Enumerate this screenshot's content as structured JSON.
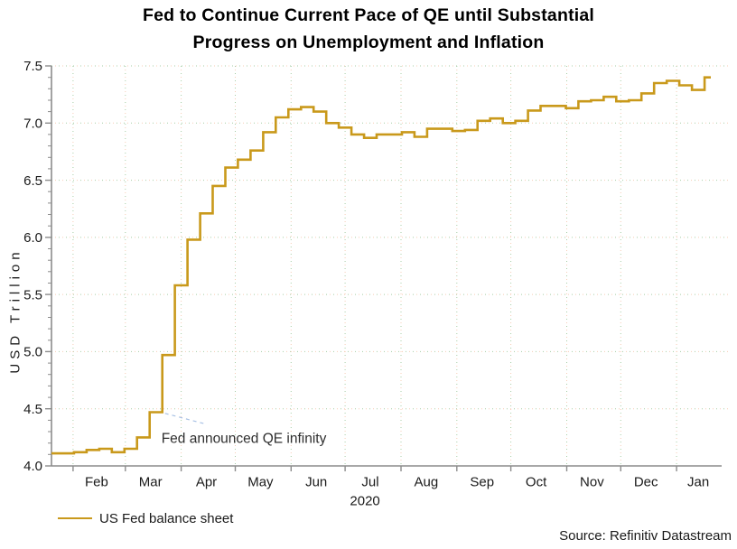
{
  "title": {
    "line1": "Fed to Continue Current Pace of QE until Substantial",
    "line2": "Progress on Unemployment and Inflation"
  },
  "legend": {
    "label": "US Fed balance sheet"
  },
  "source": "Source: Refinitiv Datastream",
  "annotation": {
    "text": "Fed announced QE infinity",
    "leader": {
      "from": {
        "date": "2020-03-23",
        "value": 4.46
      },
      "to": {
        "date": "2020-04-15",
        "value": 4.365
      }
    },
    "text_anchor": {
      "date": "2020-03-21",
      "value": 4.2
    }
  },
  "y_axis": {
    "label": "USD Trillion",
    "tick_values": [
      4.0,
      4.5,
      5.0,
      5.5,
      6.0,
      6.5,
      7.0,
      7.5
    ],
    "tick_labels": [
      "4.0",
      "4.5",
      "5.0",
      "5.5",
      "6.0",
      "6.5",
      "7.0",
      "7.5"
    ],
    "minor_step": 0.1,
    "grid_values": [
      4.5,
      5.0,
      5.5,
      6.0,
      6.5,
      7.0,
      7.5
    ]
  },
  "x_axis": {
    "tick_dates": [
      "2020-02-01",
      "2020-03-01",
      "2020-04-01",
      "2020-05-01",
      "2020-06-01",
      "2020-07-01",
      "2020-08-01",
      "2020-09-01",
      "2020-10-01",
      "2020-11-01",
      "2020-12-01",
      "2021-01-01"
    ],
    "month_labels": [
      {
        "label": "Feb",
        "date": "2020-02-14"
      },
      {
        "label": "Mar",
        "date": "2020-03-15"
      },
      {
        "label": "Apr",
        "date": "2020-04-15"
      },
      {
        "label": "May",
        "date": "2020-05-15"
      },
      {
        "label": "Jun",
        "date": "2020-06-15"
      },
      {
        "label": "Jul",
        "date": "2020-07-15"
      },
      {
        "label": "Aug",
        "date": "2020-08-15"
      },
      {
        "label": "Sep",
        "date": "2020-09-15"
      },
      {
        "label": "Oct",
        "date": "2020-10-15"
      },
      {
        "label": "Nov",
        "date": "2020-11-15"
      },
      {
        "label": "Dec",
        "date": "2020-12-15"
      },
      {
        "label": "Jan",
        "date": "2021-01-13"
      }
    ],
    "year_label": "2020",
    "year_label_date": "2020-07-12"
  },
  "colors": {
    "series": "#C9991B",
    "grid_green": "#a5cda5",
    "grid_pink": "#f7ccb5",
    "axis": "#8c8c8c",
    "tick_text": "#1a1a1a",
    "annotation_leader": "#a7c0e4",
    "annotation_text": "#2e2e2e"
  },
  "chart_data": {
    "type": "line",
    "title": "Fed to Continue Current Pace of QE until Substantial Progress on Unemployment and Inflation",
    "xlabel": "2020",
    "ylabel": "USD Trillion",
    "ylim": [
      4.0,
      7.5
    ],
    "x_domain": [
      "2020-01-20",
      "2021-01-26"
    ],
    "grid": true,
    "legend_position": "bottom-left",
    "step_interpolation": "mid",
    "series": [
      {
        "name": "US Fed balance sheet",
        "color": "#C9991B",
        "points": [
          [
            "2020-01-20",
            4.11
          ],
          [
            "2020-01-22",
            4.11
          ],
          [
            "2020-01-29",
            4.11
          ],
          [
            "2020-02-05",
            4.12
          ],
          [
            "2020-02-12",
            4.14
          ],
          [
            "2020-02-19",
            4.15
          ],
          [
            "2020-02-26",
            4.12
          ],
          [
            "2020-03-04",
            4.15
          ],
          [
            "2020-03-11",
            4.25
          ],
          [
            "2020-03-18",
            4.47
          ],
          [
            "2020-03-25",
            4.97
          ],
          [
            "2020-04-01",
            5.58
          ],
          [
            "2020-04-08",
            5.98
          ],
          [
            "2020-04-15",
            6.21
          ],
          [
            "2020-04-22",
            6.45
          ],
          [
            "2020-04-29",
            6.61
          ],
          [
            "2020-05-06",
            6.68
          ],
          [
            "2020-05-13",
            6.76
          ],
          [
            "2020-05-20",
            6.92
          ],
          [
            "2020-05-27",
            7.05
          ],
          [
            "2020-06-03",
            7.12
          ],
          [
            "2020-06-10",
            7.14
          ],
          [
            "2020-06-17",
            7.1
          ],
          [
            "2020-06-24",
            7.0
          ],
          [
            "2020-07-01",
            6.96
          ],
          [
            "2020-07-08",
            6.9
          ],
          [
            "2020-07-15",
            6.87
          ],
          [
            "2020-07-22",
            6.9
          ],
          [
            "2020-07-29",
            6.9
          ],
          [
            "2020-08-05",
            6.92
          ],
          [
            "2020-08-12",
            6.88
          ],
          [
            "2020-08-19",
            6.95
          ],
          [
            "2020-08-26",
            6.95
          ],
          [
            "2020-09-02",
            6.93
          ],
          [
            "2020-09-09",
            6.94
          ],
          [
            "2020-09-16",
            7.02
          ],
          [
            "2020-09-23",
            7.04
          ],
          [
            "2020-09-30",
            7.0
          ],
          [
            "2020-10-07",
            7.02
          ],
          [
            "2020-10-14",
            7.11
          ],
          [
            "2020-10-21",
            7.15
          ],
          [
            "2020-10-28",
            7.15
          ],
          [
            "2020-11-04",
            7.13
          ],
          [
            "2020-11-11",
            7.19
          ],
          [
            "2020-11-18",
            7.2
          ],
          [
            "2020-11-25",
            7.23
          ],
          [
            "2020-12-02",
            7.19
          ],
          [
            "2020-12-09",
            7.2
          ],
          [
            "2020-12-16",
            7.26
          ],
          [
            "2020-12-23",
            7.35
          ],
          [
            "2020-12-30",
            7.37
          ],
          [
            "2021-01-06",
            7.33
          ],
          [
            "2021-01-13",
            7.29
          ],
          [
            "2021-01-20",
            7.4
          ]
        ]
      }
    ]
  }
}
